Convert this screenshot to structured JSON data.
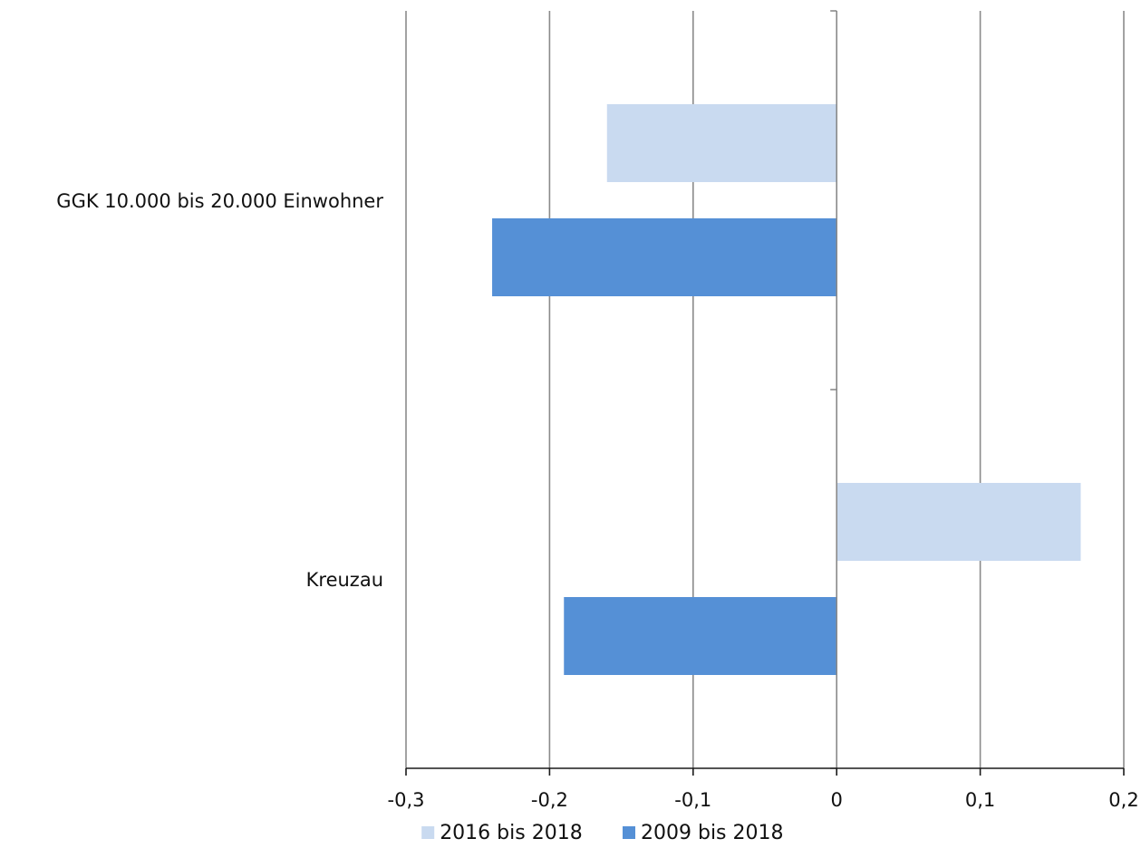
{
  "chart_data": {
    "type": "bar",
    "orientation": "horizontal",
    "categories": [
      "GGK 10.000 bis 20.000 Einwohner",
      "Kreuzau"
    ],
    "series": [
      {
        "name": "2016 bis 2018",
        "color": "#c9daf0",
        "values": [
          -0.16,
          0.17
        ]
      },
      {
        "name": "2009 bis 2018",
        "color": "#5590d6",
        "values": [
          -0.24,
          -0.19
        ]
      }
    ],
    "xlim": [
      -0.3,
      0.2
    ],
    "x_ticks": [
      -0.3,
      -0.2,
      -0.1,
      0,
      0.1,
      0.2
    ],
    "x_tick_labels": [
      "-0,3",
      "-0,2",
      "-0,1",
      "0",
      "0,1",
      "0,2"
    ],
    "grid": "vertical",
    "legend_position": "bottom",
    "title": "",
    "xlabel": "",
    "ylabel": ""
  }
}
